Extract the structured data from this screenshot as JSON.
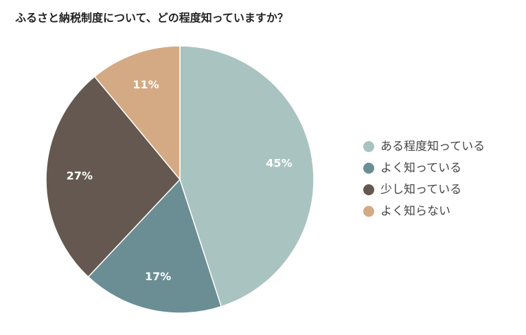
{
  "chart_data": {
    "type": "pie",
    "title": "ふるさと納税制度について、どの程度知っていますか？",
    "categories": [
      "ある程度知っている",
      "よく知っている",
      "少し知っている",
      "よく知らない"
    ],
    "values": [
      45,
      17,
      27,
      11
    ],
    "value_labels": [
      "45%",
      "17%",
      "27%",
      "11%"
    ],
    "colors": [
      "#a9c3c1",
      "#6b8e94",
      "#645850",
      "#d4aa84"
    ]
  }
}
